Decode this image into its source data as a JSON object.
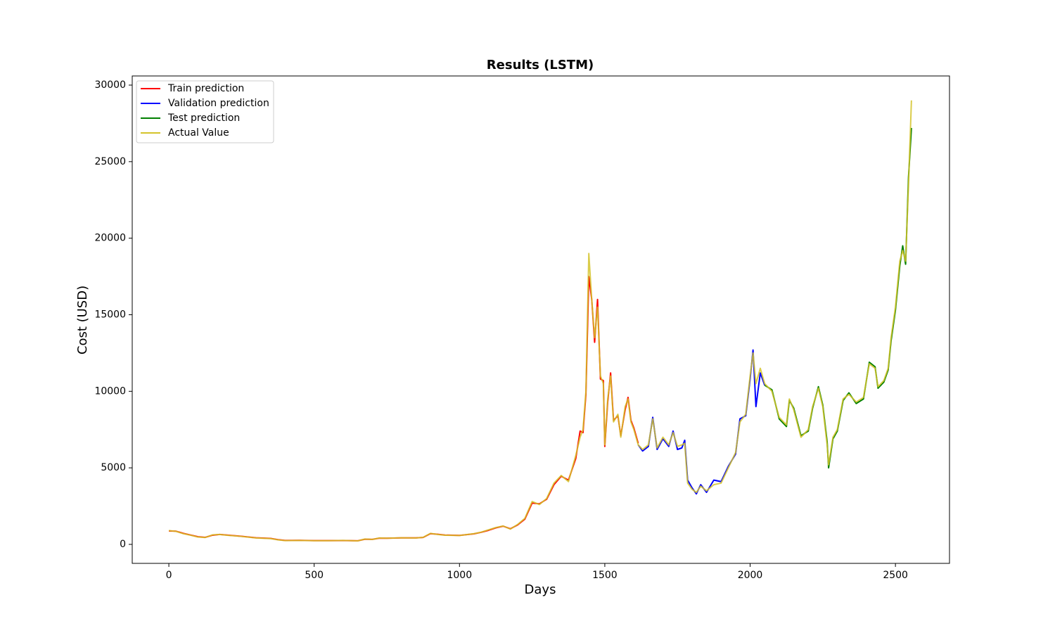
{
  "chart_data": {
    "type": "line",
    "title": "Results (LSTM)",
    "x_label": "Days",
    "y_label": "Cost (USD)",
    "xlim": [
      -126,
      2686
    ],
    "ylim": [
      -1240,
      30597
    ],
    "xticks": [
      0,
      500,
      1000,
      1500,
      2000,
      2500
    ],
    "yticks": [
      0,
      5000,
      10000,
      15000,
      20000,
      25000,
      30000
    ],
    "legend": "upper left",
    "grid": false,
    "series": [
      {
        "name": "Train prediction",
        "color": "#ff0000",
        "x": [
          0,
          25,
          50,
          75,
          100,
          125,
          150,
          175,
          200,
          250,
          300,
          350,
          375,
          400,
          450,
          500,
          550,
          600,
          650,
          675,
          700,
          725,
          750,
          800,
          850,
          875,
          900,
          925,
          950,
          1000,
          1050,
          1075,
          1100,
          1125,
          1150,
          1175,
          1200,
          1225,
          1250,
          1275,
          1300,
          1325,
          1350,
          1375,
          1400,
          1415,
          1425,
          1435,
          1445,
          1455,
          1465,
          1475,
          1485,
          1495,
          1500,
          1510,
          1520,
          1530,
          1545,
          1555,
          1570,
          1580,
          1590,
          1600,
          1615
        ],
        "values": [
          880,
          860,
          720,
          610,
          500,
          460,
          600,
          650,
          610,
          530,
          430,
          390,
          310,
          260,
          265,
          245,
          245,
          255,
          235,
          340,
          330,
          410,
          405,
          425,
          425,
          455,
          700,
          660,
          610,
          585,
          690,
          790,
          920,
          1080,
          1190,
          1020,
          1270,
          1650,
          2700,
          2650,
          2950,
          3900,
          4450,
          4200,
          5600,
          7400,
          7300,
          9800,
          17500,
          16000,
          13200,
          16000,
          10800,
          10700,
          6400,
          9300,
          11200,
          8100,
          8400,
          7100,
          8800,
          9600,
          8100,
          7600,
          6600
        ]
      },
      {
        "name": "Validation prediction",
        "color": "#0000ff",
        "x": [
          1615,
          1630,
          1650,
          1665,
          1680,
          1700,
          1720,
          1735,
          1750,
          1765,
          1775,
          1785,
          1800,
          1815,
          1830,
          1850,
          1875,
          1900,
          1925,
          1950,
          1965,
          1985,
          2000,
          2010,
          2020,
          2035,
          2050
        ],
        "values": [
          6500,
          6100,
          6400,
          8300,
          6200,
          6900,
          6400,
          7400,
          6200,
          6300,
          6800,
          4200,
          3700,
          3300,
          3900,
          3400,
          4200,
          4100,
          5100,
          5900,
          8200,
          8400,
          10800,
          12700,
          9000,
          11200,
          10400
        ]
      },
      {
        "name": "Test prediction",
        "color": "#008000",
        "x": [
          2050,
          2075,
          2100,
          2125,
          2135,
          2150,
          2175,
          2200,
          2215,
          2235,
          2250,
          2265,
          2270,
          2285,
          2300,
          2320,
          2340,
          2365,
          2390,
          2410,
          2430,
          2440,
          2460,
          2475,
          2485,
          2500,
          2515,
          2525,
          2535,
          2545,
          2555
        ],
        "values": [
          10400,
          10100,
          8200,
          7700,
          9400,
          8900,
          7100,
          7400,
          8900,
          10300,
          9100,
          6700,
          5000,
          6900,
          7400,
          9400,
          9900,
          9200,
          9500,
          11900,
          11600,
          10200,
          10600,
          11400,
          13300,
          15300,
          18200,
          19500,
          18300,
          24000,
          27200
        ]
      },
      {
        "name": "Actual Value",
        "color": "#d4c32a",
        "x": [
          0,
          25,
          50,
          75,
          100,
          125,
          150,
          175,
          200,
          250,
          300,
          350,
          375,
          400,
          450,
          500,
          550,
          600,
          650,
          675,
          700,
          725,
          750,
          800,
          850,
          875,
          900,
          925,
          950,
          1000,
          1050,
          1075,
          1100,
          1125,
          1150,
          1175,
          1200,
          1225,
          1250,
          1275,
          1300,
          1325,
          1350,
          1375,
          1400,
          1415,
          1425,
          1435,
          1445,
          1455,
          1465,
          1475,
          1485,
          1495,
          1500,
          1510,
          1520,
          1530,
          1545,
          1555,
          1570,
          1580,
          1590,
          1600,
          1615,
          1630,
          1650,
          1665,
          1680,
          1700,
          1720,
          1735,
          1750,
          1765,
          1775,
          1785,
          1800,
          1815,
          1830,
          1850,
          1875,
          1900,
          1925,
          1950,
          1965,
          1985,
          2000,
          2010,
          2020,
          2035,
          2050,
          2075,
          2100,
          2125,
          2135,
          2150,
          2175,
          2200,
          2215,
          2235,
          2250,
          2265,
          2270,
          2285,
          2300,
          2320,
          2340,
          2365,
          2390,
          2410,
          2430,
          2440,
          2460,
          2475,
          2485,
          2500,
          2515,
          2525,
          2535,
          2545,
          2555
        ],
        "values": [
          900,
          850,
          700,
          600,
          480,
          450,
          620,
          650,
          600,
          520,
          420,
          380,
          300,
          250,
          260,
          240,
          240,
          260,
          230,
          350,
          320,
          420,
          400,
          430,
          420,
          460,
          720,
          650,
          600,
          580,
          700,
          800,
          950,
          1100,
          1200,
          1000,
          1300,
          1700,
          2800,
          2600,
          3000,
          4000,
          4500,
          4100,
          5800,
          7000,
          7500,
          10000,
          19000,
          16000,
          13500,
          15500,
          11000,
          10500,
          6500,
          9500,
          11000,
          8000,
          8500,
          7000,
          9000,
          9500,
          8000,
          7500,
          6500,
          6200,
          6500,
          8200,
          6300,
          7000,
          6500,
          7300,
          6400,
          6500,
          6600,
          4000,
          3600,
          3400,
          3800,
          3500,
          3900,
          4000,
          5000,
          6000,
          8000,
          8500,
          11000,
          12500,
          10500,
          11500,
          10500,
          10000,
          8300,
          7800,
          9500,
          8800,
          7000,
          7500,
          9000,
          10200,
          9000,
          6500,
          5200,
          7000,
          7500,
          9500,
          9800,
          9300,
          9600,
          11800,
          11500,
          10300,
          10700,
          11500,
          13500,
          15500,
          18500,
          19200,
          18500,
          23500,
          29000
        ]
      }
    ]
  }
}
